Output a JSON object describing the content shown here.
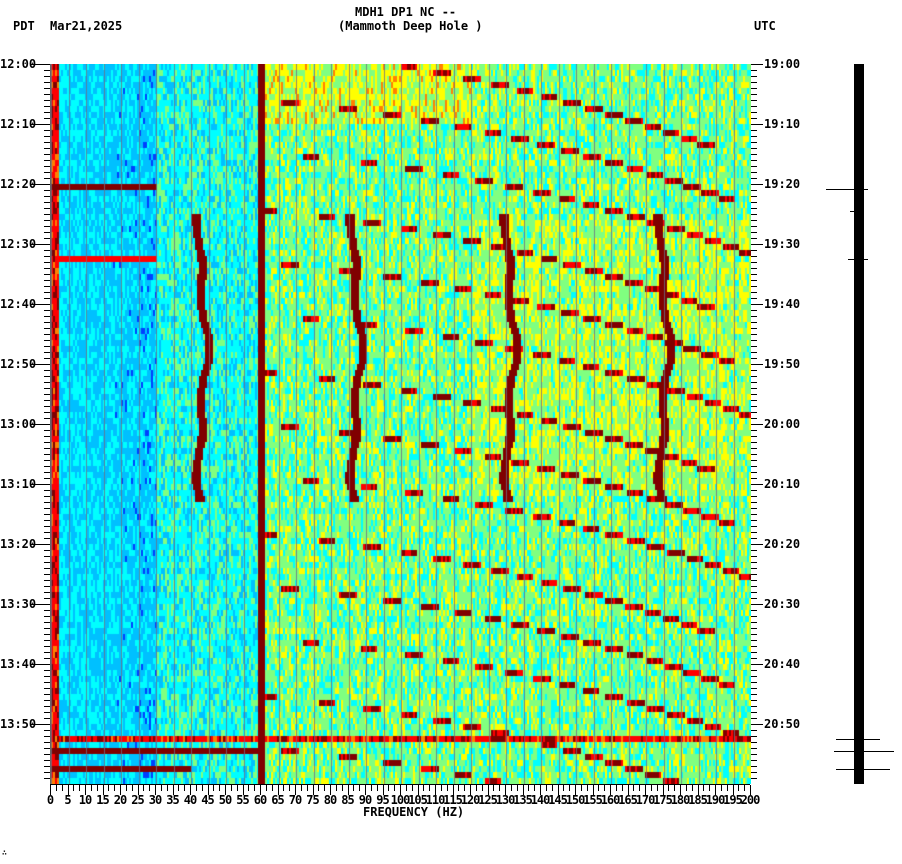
{
  "header": {
    "left_tz": "PDT",
    "date": "Mar21,2025",
    "station": "MDH1 DP1 NC --",
    "station_name": "(Mammoth Deep Hole )",
    "right_tz": "UTC"
  },
  "footer": {
    "corner_mark": "∴"
  },
  "chart_data": {
    "type": "heatmap",
    "title": "MDH1 DP1 NC -- (Mammoth Deep Hole )",
    "subtitle": "Mar21,2025",
    "xlabel": "FREQUENCY (HZ)",
    "ylabel_left": "PDT",
    "ylabel_right": "UTC",
    "xlim": [
      0,
      200
    ],
    "x_ticks": [
      0,
      5,
      10,
      15,
      20,
      25,
      30,
      35,
      40,
      45,
      50,
      55,
      60,
      65,
      70,
      75,
      80,
      85,
      90,
      95,
      100,
      105,
      110,
      115,
      120,
      125,
      130,
      135,
      140,
      145,
      150,
      155,
      160,
      165,
      170,
      175,
      180,
      185,
      190,
      195,
      200
    ],
    "y_ticks_left": [
      "12:00",
      "12:10",
      "12:20",
      "12:30",
      "12:40",
      "12:50",
      "13:00",
      "13:10",
      "13:20",
      "13:30",
      "13:40",
      "13:50"
    ],
    "y_ticks_right": [
      "19:00",
      "19:10",
      "19:20",
      "19:30",
      "19:40",
      "19:50",
      "20:00",
      "20:10",
      "20:20",
      "20:30",
      "20:40",
      "20:50"
    ],
    "time_range_minutes": 120,
    "colormap": [
      "#0040ff",
      "#00c0ff",
      "#00ffff",
      "#80ff80",
      "#ffff00",
      "#ff8000",
      "#ff0000",
      "#800000"
    ],
    "features": [
      {
        "name": "60 Hz line",
        "freq_hz": 60,
        "type": "constant",
        "intensity": "max"
      },
      {
        "name": "low-frequency band",
        "freq_hz": 0.5,
        "type": "constant",
        "intensity": "high"
      },
      {
        "name": "wandering tone 1",
        "freq_hz": 43,
        "start_min": 25,
        "end_min": 72
      },
      {
        "name": "wandering tone 2",
        "freq_hz": 87,
        "start_min": 25,
        "end_min": 72
      },
      {
        "name": "wandering tone 3",
        "freq_hz": 131,
        "start_min": 25,
        "end_min": 72
      },
      {
        "name": "wandering tone 4",
        "freq_hz": 175,
        "start_min": 25,
        "end_min": 72
      },
      {
        "name": "broadband burst",
        "time_min": 20,
        "freq_range": [
          0,
          30
        ]
      },
      {
        "name": "broadband burst",
        "time_min": 112,
        "freq_range": [
          0,
          200
        ]
      },
      {
        "name": "broadband burst",
        "time_min": 114,
        "freq_range": [
          0,
          60
        ]
      },
      {
        "name": "broadband burst",
        "time_min": 117,
        "freq_range": [
          0,
          40
        ]
      }
    ],
    "grid": true,
    "legend": "none"
  },
  "seismogram": {
    "spikes_minutes": [
      20.8,
      24.5,
      32.5,
      112.5,
      114.5,
      117.5
    ]
  }
}
